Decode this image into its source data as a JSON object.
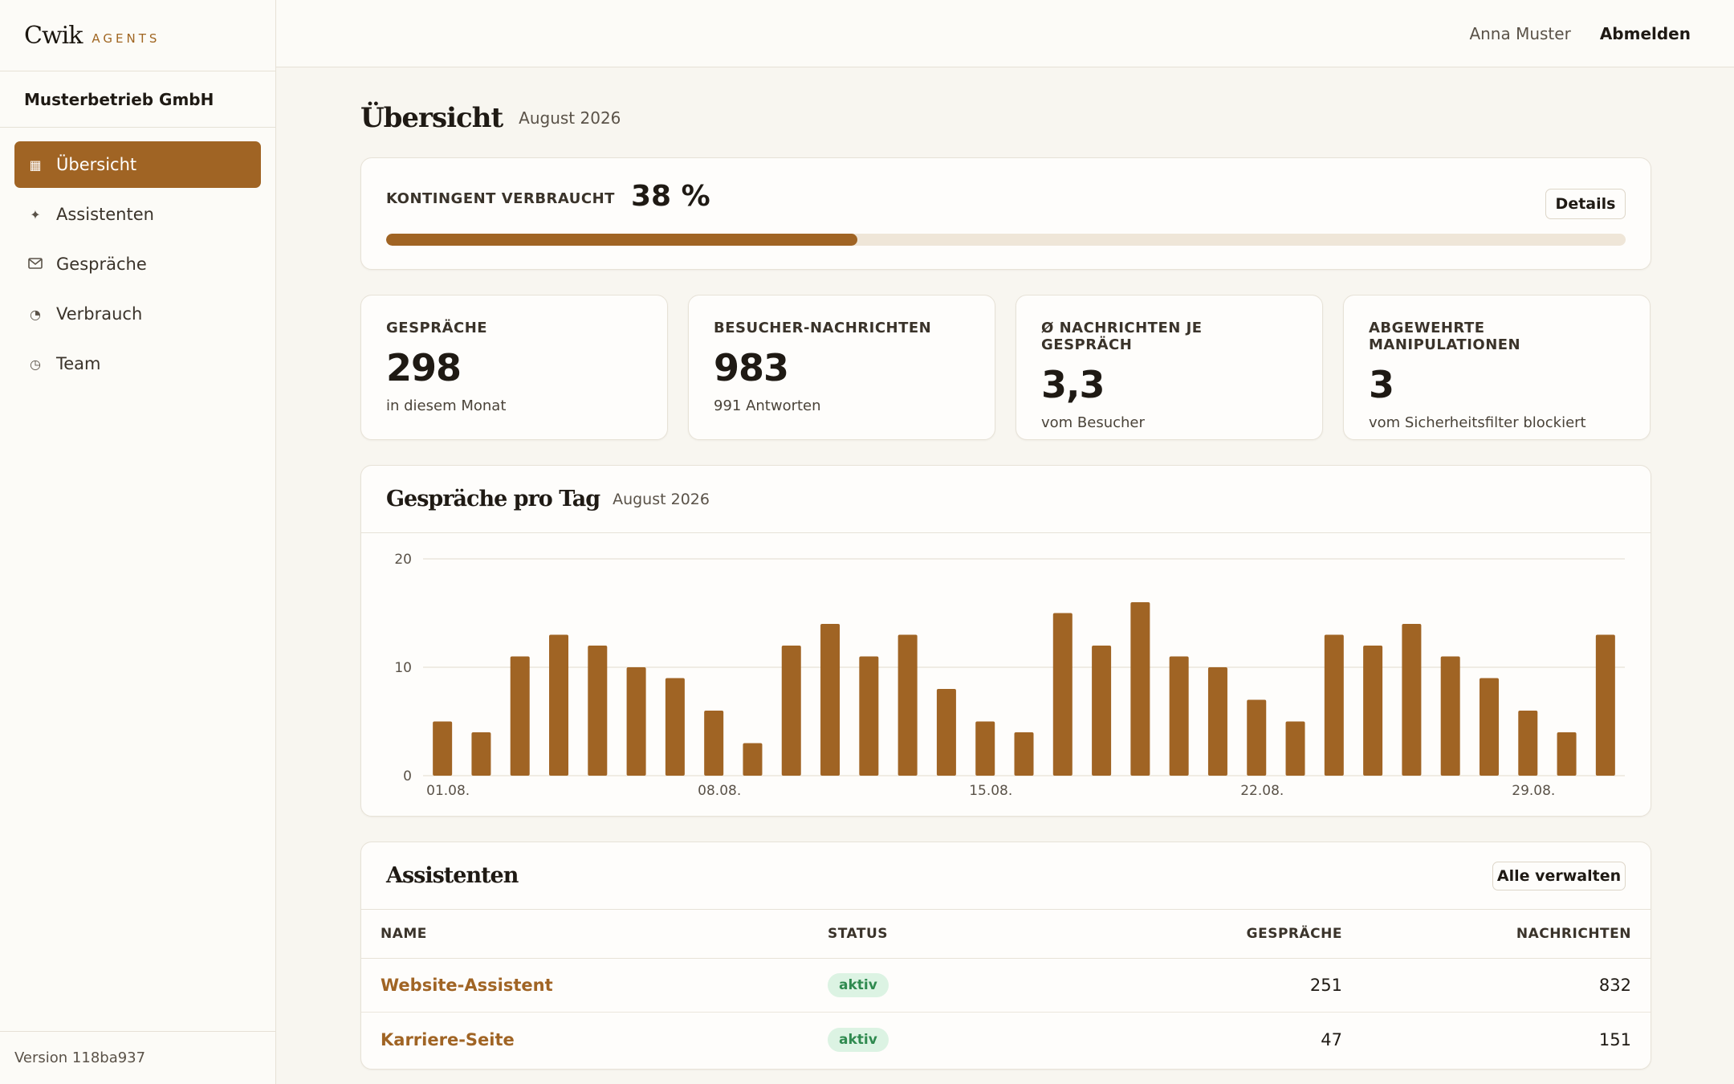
{
  "app": {
    "brand": "Cwik",
    "brand_sub": "AGENTS",
    "version": "Version 118ba937"
  },
  "org": {
    "name": "Musterbetrieb GmbH"
  },
  "nav": [
    {
      "label": "Übersicht",
      "icon": "grid-icon",
      "active": true
    },
    {
      "label": "Assistenten",
      "icon": "sparkle-icon",
      "active": false
    },
    {
      "label": "Gespräche",
      "icon": "mail-icon",
      "active": false
    },
    {
      "label": "Verbrauch",
      "icon": "pie-icon",
      "active": false
    },
    {
      "label": "Team",
      "icon": "clock-icon",
      "active": false
    }
  ],
  "topbar": {
    "user": "Anna Muster",
    "logout": "Abmelden"
  },
  "page": {
    "title": "Übersicht",
    "subtitle": "August 2026"
  },
  "quota": {
    "label": "KONTINGENT VERBRAUCHT",
    "value": "38 %",
    "percent": 38,
    "button": "Details"
  },
  "stats": [
    {
      "label": "GESPRÄCHE",
      "value": "298",
      "sub": "in diesem Monat"
    },
    {
      "label": "BESUCHER-NACHRICHTEN",
      "value": "983",
      "sub": "991 Antworten"
    },
    {
      "label": "Ø NACHRICHTEN JE GESPRÄCH",
      "value": "3,3",
      "sub": "vom Besucher"
    },
    {
      "label": "ABGEWEHRTE MANIPULATIONEN",
      "value": "3",
      "sub": "vom Sicherheitsfilter blockiert"
    }
  ],
  "chart": {
    "title": "Gespräche pro Tag",
    "subtitle": "August 2026"
  },
  "chart_data": {
    "type": "bar",
    "title": "Gespräche pro Tag",
    "subtitle": "August 2026",
    "xlabel": "",
    "ylabel": "",
    "ylim": [
      0,
      20
    ],
    "yticks": [
      0,
      10,
      20
    ],
    "categories": [
      "01.08.",
      "02.08.",
      "03.08.",
      "04.08.",
      "05.08.",
      "06.08.",
      "07.08.",
      "08.08.",
      "09.08.",
      "10.08.",
      "11.08.",
      "12.08.",
      "13.08.",
      "14.08.",
      "15.08.",
      "16.08.",
      "17.08.",
      "18.08.",
      "19.08.",
      "20.08.",
      "21.08.",
      "22.08.",
      "23.08.",
      "24.08.",
      "25.08.",
      "26.08.",
      "27.08.",
      "28.08.",
      "29.08.",
      "30.08.",
      "31.08."
    ],
    "xtick_labels": [
      "01.08.",
      "08.08.",
      "15.08.",
      "22.08.",
      "29.08."
    ],
    "values": [
      5,
      4,
      11,
      13,
      12,
      10,
      9,
      6,
      3,
      12,
      14,
      11,
      13,
      8,
      5,
      4,
      15,
      12,
      16,
      11,
      10,
      7,
      5,
      13,
      12,
      14,
      11,
      9,
      6,
      4,
      13
    ],
    "grid": true,
    "color": "#a06424"
  },
  "assistants": {
    "title": "Assistenten",
    "button": "Alle verwalten",
    "columns": [
      "NAME",
      "STATUS",
      "GESPRÄCHE",
      "NACHRICHTEN"
    ],
    "rows": [
      {
        "name": "Website-Assistent",
        "status": "aktiv",
        "conversations": "251",
        "messages": "832"
      },
      {
        "name": "Karriere-Seite",
        "status": "aktiv",
        "conversations": "47",
        "messages": "151"
      }
    ]
  }
}
